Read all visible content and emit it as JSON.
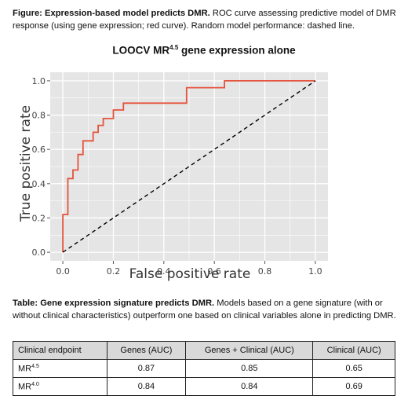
{
  "figure_caption": {
    "bold": "Figure: Expression-based model predicts DMR.",
    "text": " ROC curve assessing predictive model of DMR response (using gene expression; red curve). Random model performance: dashed line."
  },
  "chart_data": {
    "type": "line",
    "title": "LOOCV MR",
    "title_sup": "4.5",
    "title_suffix": " gene expression alone",
    "xlabel": "False positive rate",
    "ylabel": "True positive rate",
    "xlim": [
      -0.05,
      1.05
    ],
    "ylim": [
      -0.05,
      1.05
    ],
    "x_ticks": [
      "0.0",
      "0.2",
      "0.4",
      "0.6",
      "0.8",
      "1.0"
    ],
    "y_ticks": [
      "0.0",
      "0.2",
      "0.4",
      "0.6",
      "0.8",
      "1.0"
    ],
    "grid": true,
    "colors": {
      "roc": "#e5533c",
      "background": "#e5e5e5",
      "grid": "#ffffff",
      "random": "#000000"
    },
    "series": [
      {
        "style": "solid",
        "x": [
          0.0,
          0.0,
          0.02,
          0.02,
          0.04,
          0.04,
          0.06,
          0.06,
          0.08,
          0.08,
          0.12,
          0.12,
          0.14,
          0.14,
          0.16,
          0.16,
          0.2,
          0.2,
          0.24,
          0.24,
          0.49,
          0.49,
          0.64,
          0.64,
          1.0
        ],
        "y": [
          0.0,
          0.22,
          0.22,
          0.43,
          0.43,
          0.48,
          0.48,
          0.57,
          0.57,
          0.65,
          0.65,
          0.7,
          0.7,
          0.74,
          0.74,
          0.78,
          0.78,
          0.83,
          0.83,
          0.87,
          0.87,
          0.96,
          0.96,
          1.0,
          1.0
        ]
      },
      {
        "style": "dashed",
        "x": [
          0.0,
          1.0
        ],
        "y": [
          0.0,
          1.0
        ]
      }
    ]
  },
  "table_caption": {
    "bold": "Table: Gene expression signature predicts DMR.",
    "text": " Models based on a gene signature (with or without clinical characteristics) outperform one based on clinical variables alone in predicting DMR."
  },
  "table": {
    "headers": [
      "Clinical endpoint",
      "Genes (AUC)",
      "Genes + Clinical (AUC)",
      "Clinical (AUC)"
    ],
    "rows": [
      {
        "endpoint": "MR",
        "endpoint_sup": "4.5",
        "genes": "0.87",
        "genes_clinical": "0.85",
        "clinical": "0.65"
      },
      {
        "endpoint": "MR",
        "endpoint_sup": "4.0",
        "genes": "0.84",
        "genes_clinical": "0.84",
        "clinical": "0.69"
      }
    ]
  }
}
